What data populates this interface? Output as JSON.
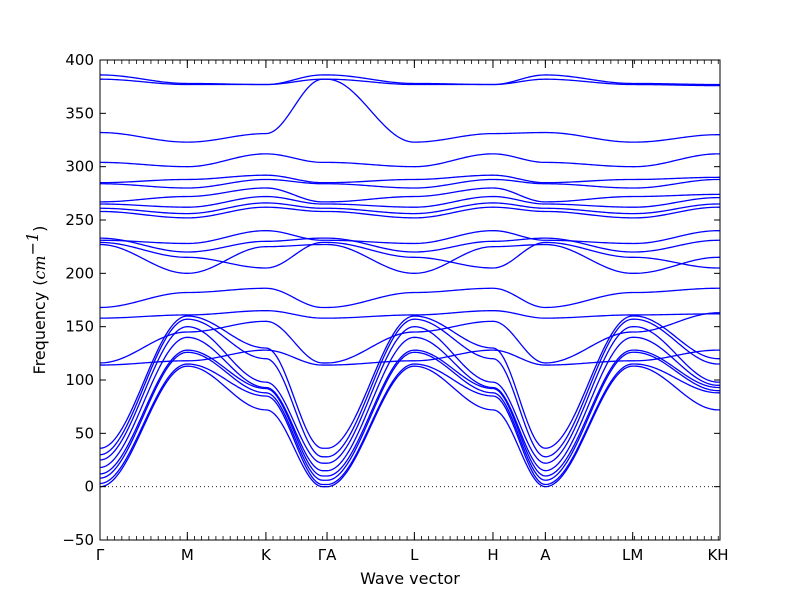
{
  "chart_data": {
    "type": "line",
    "xlabel": "Wave vector",
    "ylabel": "Frequency",
    "ylabel_unit": "cm",
    "ylabel_unit_exponent": "−1",
    "ylim": [
      -50,
      400
    ],
    "y_ticks": [
      -50,
      0,
      50,
      100,
      150,
      200,
      250,
      300,
      350,
      400
    ],
    "x_ticks": [
      {
        "label": "Γ",
        "x": 0
      },
      {
        "label": "M",
        "x": 1
      },
      {
        "label": "K",
        "x": 1.9
      },
      {
        "label": "ΓA",
        "x": 2.6
      },
      {
        "label": "L",
        "x": 3.6
      },
      {
        "label": "H",
        "x": 4.5
      },
      {
        "label": "A",
        "x": 5.1
      },
      {
        "label": "LM",
        "x": 6.1
      },
      {
        "label": "KH",
        "x": 7.1
      }
    ],
    "xlim": [
      0,
      7.1
    ],
    "zero_line": {
      "y": 0,
      "style": "dotted"
    },
    "line_color": "#0000ff",
    "segment_x": [
      0,
      1,
      1.9,
      2.55,
      2.6,
      3.6,
      4.5,
      5.1,
      6.1,
      6.12,
      7.08,
      7.1
    ],
    "series": [
      {
        "values": [
          0,
          113,
          72,
          0,
          0,
          113,
          72,
          0,
          113,
          113,
          72,
          72
        ]
      },
      {
        "values": [
          3,
          115,
          85,
          2,
          2,
          115,
          85,
          2,
          115,
          115,
          88,
          88
        ]
      },
      {
        "values": [
          8,
          126,
          88,
          6,
          6,
          126,
          88,
          6,
          126,
          126,
          90,
          90
        ]
      },
      {
        "values": [
          12,
          128,
          92,
          10,
          10,
          128,
          92,
          10,
          128,
          128,
          93,
          93
        ]
      },
      {
        "values": [
          18,
          140,
          93,
          15,
          15,
          140,
          93,
          15,
          140,
          140,
          95,
          95
        ]
      },
      {
        "values": [
          25,
          150,
          98,
          22,
          22,
          150,
          98,
          22,
          150,
          150,
          98,
          98
        ]
      },
      {
        "values": [
          30,
          157,
          120,
          28,
          28,
          157,
          120,
          28,
          157,
          157,
          115,
          115
        ]
      },
      {
        "values": [
          36,
          160,
          130,
          36,
          36,
          160,
          130,
          36,
          160,
          160,
          120,
          120
        ]
      },
      {
        "values": [
          114,
          118,
          128,
          114,
          114,
          118,
          128,
          114,
          118,
          118,
          128,
          128
        ]
      },
      {
        "values": [
          116,
          145,
          155,
          116,
          116,
          145,
          155,
          116,
          145,
          145,
          163,
          163
        ]
      },
      {
        "values": [
          158,
          161,
          165,
          158,
          158,
          161,
          165,
          158,
          161,
          161,
          162,
          162
        ]
      },
      {
        "values": [
          168,
          182,
          186,
          168,
          168,
          182,
          186,
          168,
          182,
          182,
          186,
          186
        ]
      },
      {
        "values": [
          227,
          200,
          225,
          227,
          227,
          200,
          225,
          227,
          200,
          200,
          215,
          215
        ]
      },
      {
        "values": [
          229,
          215,
          205,
          229,
          229,
          215,
          205,
          229,
          215,
          215,
          205,
          205
        ]
      },
      {
        "values": [
          231,
          228,
          240,
          231,
          231,
          228,
          240,
          231,
          228,
          228,
          240,
          240
        ]
      },
      {
        "values": [
          233,
          220,
          230,
          233,
          233,
          220,
          230,
          233,
          220,
          220,
          231,
          231
        ]
      },
      {
        "values": [
          258,
          252,
          262,
          258,
          258,
          252,
          262,
          258,
          252,
          252,
          262,
          262
        ]
      },
      {
        "values": [
          261,
          256,
          266,
          261,
          261,
          256,
          266,
          261,
          256,
          256,
          265,
          265
        ]
      },
      {
        "values": [
          265,
          262,
          272,
          265,
          265,
          262,
          272,
          265,
          262,
          262,
          271,
          271
        ]
      },
      {
        "values": [
          267,
          272,
          280,
          267,
          267,
          272,
          280,
          267,
          272,
          272,
          274,
          274
        ]
      },
      {
        "values": [
          284,
          280,
          288,
          284,
          284,
          280,
          288,
          284,
          280,
          280,
          288,
          288
        ]
      },
      {
        "values": [
          285,
          288,
          292,
          285,
          285,
          288,
          292,
          285,
          288,
          288,
          290,
          290
        ]
      },
      {
        "values": [
          304,
          300,
          312,
          304,
          304,
          300,
          312,
          304,
          300,
          300,
          312,
          312
        ]
      },
      {
        "values": [
          332,
          323,
          331,
          382,
          382,
          323,
          331,
          332,
          323,
          323,
          330,
          330
        ]
      },
      {
        "values": [
          382,
          377,
          377,
          382,
          382,
          377,
          377,
          382,
          377,
          377,
          376,
          376
        ]
      },
      {
        "values": [
          386,
          378,
          377,
          386,
          386,
          378,
          377,
          386,
          378,
          378,
          377,
          377
        ]
      }
    ]
  }
}
